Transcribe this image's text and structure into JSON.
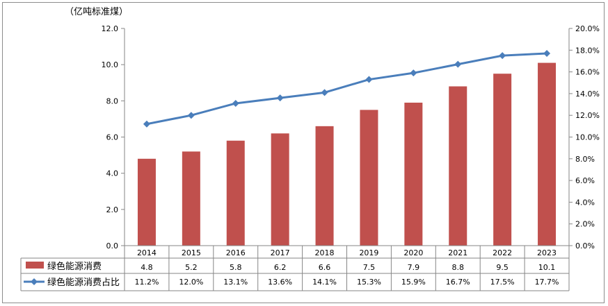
{
  "chart_data": {
    "type": "bar",
    "unit_label": "（亿吨标准煤）",
    "categories": [
      "2014",
      "2015",
      "2016",
      "2017",
      "2018",
      "2019",
      "2020",
      "2021",
      "2022",
      "2023"
    ],
    "y_left": {
      "min": 0,
      "max": 12,
      "step": 2,
      "tick_labels": [
        "0.0",
        "2.0",
        "4.0",
        "6.0",
        "8.0",
        "10.0",
        "12.0"
      ]
    },
    "y_right": {
      "min": 0,
      "max": 20,
      "step": 2,
      "tick_labels": [
        "0.0%",
        "2.0%",
        "4.0%",
        "6.0%",
        "8.0%",
        "10.0%",
        "12.0%",
        "14.0%",
        "16.0%",
        "18.0%",
        "20.0%"
      ]
    },
    "grid": false,
    "legend": "data-table-below",
    "series": [
      {
        "name": "绿色能源消费",
        "kind": "bar",
        "axis": "left",
        "color": "#c0504d",
        "values": [
          4.8,
          5.2,
          5.8,
          6.2,
          6.6,
          7.5,
          7.9,
          8.8,
          9.5,
          10.1
        ],
        "labels": [
          "4.8",
          "5.2",
          "5.8",
          "6.2",
          "6.6",
          "7.5",
          "7.9",
          "8.8",
          "9.5",
          "10.1"
        ]
      },
      {
        "name": "绿色能源消费占比",
        "kind": "line",
        "axis": "right",
        "color": "#4a7ebb",
        "values": [
          11.2,
          12.0,
          13.1,
          13.6,
          14.1,
          15.3,
          15.9,
          16.7,
          17.5,
          17.7
        ],
        "labels": [
          "11.2%",
          "12.0%",
          "13.1%",
          "13.6%",
          "14.1%",
          "15.3%",
          "15.9%",
          "16.7%",
          "17.5%",
          "17.7%"
        ]
      }
    ]
  }
}
